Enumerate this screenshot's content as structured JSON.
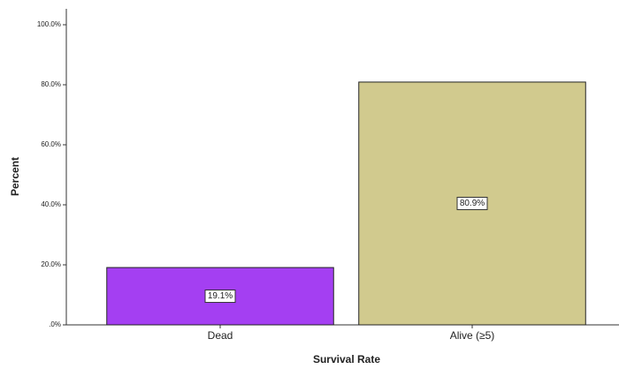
{
  "chart_data": {
    "type": "bar",
    "x_label": "Survival Rate",
    "y_label": "Percent",
    "categories": [
      "Dead",
      "Alive (≥5)"
    ],
    "values": [
      19.1,
      80.9
    ],
    "value_labels": [
      "19.1%",
      "80.9%"
    ],
    "colors": [
      "#a43ff2",
      "#d1ca8e"
    ],
    "ylim": [
      0,
      105.3
    ],
    "yticks": [
      {
        "value": 0,
        "label": ".0%"
      },
      {
        "value": 20,
        "label": "20.0%"
      },
      {
        "value": 40,
        "label": "40.0%"
      },
      {
        "value": 60,
        "label": "60.0%"
      },
      {
        "value": 80,
        "label": "80.0%"
      },
      {
        "value": 100,
        "label": "100.0%"
      }
    ]
  }
}
